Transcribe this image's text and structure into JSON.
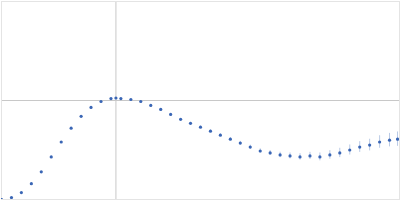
{
  "chart_data": {
    "type": "scatter",
    "x": [
      0,
      0.151,
      0.301,
      0.452,
      0.602,
      0.753,
      0.904,
      1.054,
      1.205,
      1.355,
      1.506,
      1.657,
      1.732,
      1.807,
      1.958,
      2.108,
      2.259,
      2.41,
      2.56,
      2.711,
      2.861,
      3.012,
      3.163,
      3.313,
      3.464,
      3.614,
      3.765,
      3.916,
      4.066,
      4.217,
      4.367,
      4.518,
      4.669,
      4.819,
      4.97,
      5.12,
      5.271,
      5.422,
      5.572,
      5.723,
      5.873,
      5.994
    ],
    "values": [
      0,
      0.022,
      0.077,
      0.177,
      0.309,
      0.475,
      0.641,
      0.795,
      0.927,
      1.027,
      1.093,
      1.126,
      1.132,
      1.126,
      1.115,
      1.093,
      1.049,
      1.004,
      0.949,
      0.894,
      0.85,
      0.806,
      0.762,
      0.717,
      0.673,
      0.629,
      0.585,
      0.541,
      0.519,
      0.497,
      0.486,
      0.475,
      0.486,
      0.475,
      0.497,
      0.519,
      0.552,
      0.585,
      0.607,
      0.641,
      0.662,
      0.673
    ],
    "errors": [
      0.003,
      0.003,
      0.003,
      0.003,
      0.003,
      0.003,
      0.003,
      0.003,
      0.004,
      0.004,
      0.004,
      0.004,
      0.004,
      0.005,
      0.005,
      0.006,
      0.006,
      0.007,
      0.008,
      0.009,
      0.01,
      0.012,
      0.013,
      0.015,
      0.017,
      0.019,
      0.021,
      0.024,
      0.027,
      0.03,
      0.033,
      0.036,
      0.04,
      0.044,
      0.048,
      0.052,
      0.056,
      0.06,
      0.065,
      0.07,
      0.075,
      0.08
    ],
    "color": "#3a66b5",
    "marker": "circle",
    "xlim": [
      0,
      6.024
    ],
    "ylim": [
      0,
      2.208
    ],
    "xticks": [
      1.732
    ],
    "yticks": [
      1.104
    ],
    "grid": true,
    "tick_labels": false
  }
}
